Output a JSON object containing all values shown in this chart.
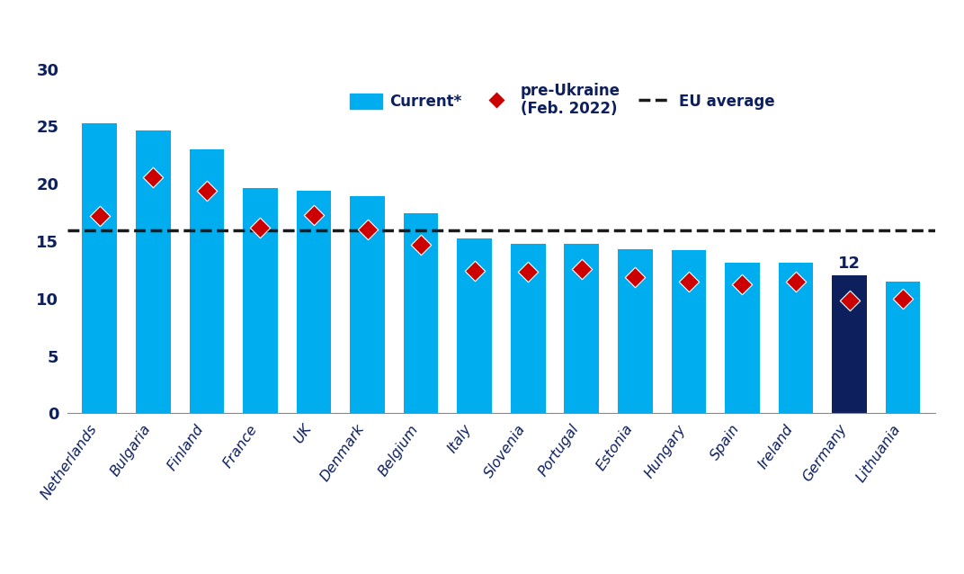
{
  "categories": [
    "Netherlands",
    "Bulgaria",
    "Finland",
    "France",
    "UK",
    "Denmark",
    "Belgium",
    "Italy",
    "Slovenia",
    "Portugal",
    "Estonia",
    "Hungary",
    "Spain",
    "Ireland",
    "Germany",
    "Lithuania"
  ],
  "bar_values": [
    25.3,
    24.6,
    23.0,
    19.6,
    19.4,
    18.9,
    17.4,
    15.2,
    14.8,
    14.8,
    14.3,
    14.2,
    13.1,
    13.1,
    12.0,
    11.5
  ],
  "diamond_values": [
    17.2,
    20.6,
    19.4,
    16.2,
    17.3,
    16.0,
    14.7,
    12.4,
    12.3,
    12.6,
    11.9,
    11.5,
    11.2,
    11.5,
    9.8,
    10.0
  ],
  "eu_average": 15.9,
  "bar_colors": [
    "#00AEEF",
    "#00AEEF",
    "#00AEEF",
    "#00AEEF",
    "#00AEEF",
    "#00AEEF",
    "#00AEEF",
    "#00AEEF",
    "#00AEEF",
    "#00AEEF",
    "#00AEEF",
    "#00AEEF",
    "#00AEEF",
    "#00AEEF",
    "#0D1F5C",
    "#00AEEF"
  ],
  "diamond_color": "#CC0000",
  "eu_avg_color": "#1a1a1a",
  "highlighted_bar_index": 14,
  "highlighted_bar_label": "12",
  "ylim": [
    0,
    30
  ],
  "yticks": [
    0,
    5,
    10,
    15,
    20,
    25,
    30
  ],
  "legend_current_label": "Current*",
  "legend_diamond_label": "pre-Ukraine\n(Feb. 2022)",
  "legend_eu_label": "EU average",
  "text_color": "#0D1F5C",
  "background_color": "#ffffff"
}
